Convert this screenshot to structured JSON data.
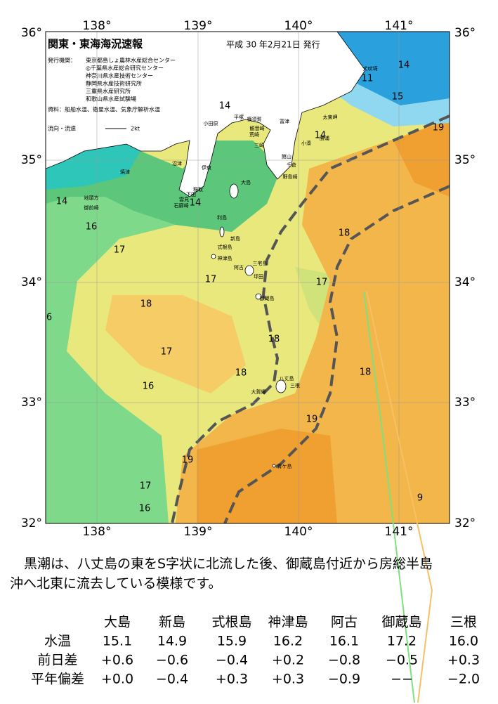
{
  "map": {
    "title": "関東・東海海況速報",
    "date": "平成 30 年2月21日 発行",
    "issuer_label": "発行機関：",
    "issuers": [
      "東京都島しょ農林水産総合センター",
      "◎千葉県水産総合研究センター",
      "神奈川県水産技術センター",
      "静岡県水産技術研究所",
      "三重県水産研究所",
      "和歌山県水産試験場"
    ],
    "sources": "資料：船舶水温、衛星水温、気象庁解析水温",
    "flow_legend": "流向・流速",
    "flow_unit": "2kt",
    "lon_labels": [
      "138°",
      "139°",
      "140°",
      "141°"
    ],
    "lat_labels": [
      "36°",
      "35°",
      "34°",
      "33°",
      "32°"
    ],
    "places": [
      "犬吠埼",
      "太東岬",
      "勝浦",
      "小湊",
      "館山",
      "千倉",
      "野島崎",
      "平塚",
      "横須賀",
      "観音崎",
      "荒崎",
      "三崎",
      "富津",
      "小田原",
      "伊東",
      "沼津",
      "焼津",
      "稲取",
      "下田",
      "石廊崎",
      "雲見",
      "地頭方",
      "御前崎",
      "大島",
      "利島",
      "新島",
      "式根島",
      "神津島",
      "三宅島",
      "阿古",
      "坪田",
      "御蔵島",
      "八丈島",
      "三根",
      "大賀郷",
      "青ケ島"
    ],
    "isotherms": [
      "14",
      "11",
      "15",
      "14",
      "19",
      "14",
      "14",
      "14",
      "16",
      "17",
      "18",
      "17",
      "17",
      "18",
      "6",
      "18",
      "17",
      "18",
      "16",
      "18",
      "19",
      "19",
      "17",
      "16",
      "9"
    ]
  },
  "summary": [
    "黒潮は、八丈島の東をS字状に北流した後、御蔵島付近から房総半島",
    "沖へ北東に流去している模様です。"
  ],
  "table": {
    "header": [
      "大島",
      "新島",
      "式根島",
      "神津島",
      "阿古",
      "御蔵島",
      "三根"
    ],
    "rows": [
      [
        "水温",
        "15.1",
        "14.9",
        "15.9",
        "16.2",
        "16.1",
        "17.2",
        "16.0"
      ],
      [
        "前日差",
        "+0.6",
        "−0.6",
        "−0.4",
        "+0.2",
        "−0.8",
        "−0.5",
        "+0.3"
      ],
      [
        "平年偏差",
        "+0.0",
        "−0.4",
        "+0.3",
        "+0.3",
        "−0.9",
        "−−",
        "−2.0"
      ]
    ]
  }
}
